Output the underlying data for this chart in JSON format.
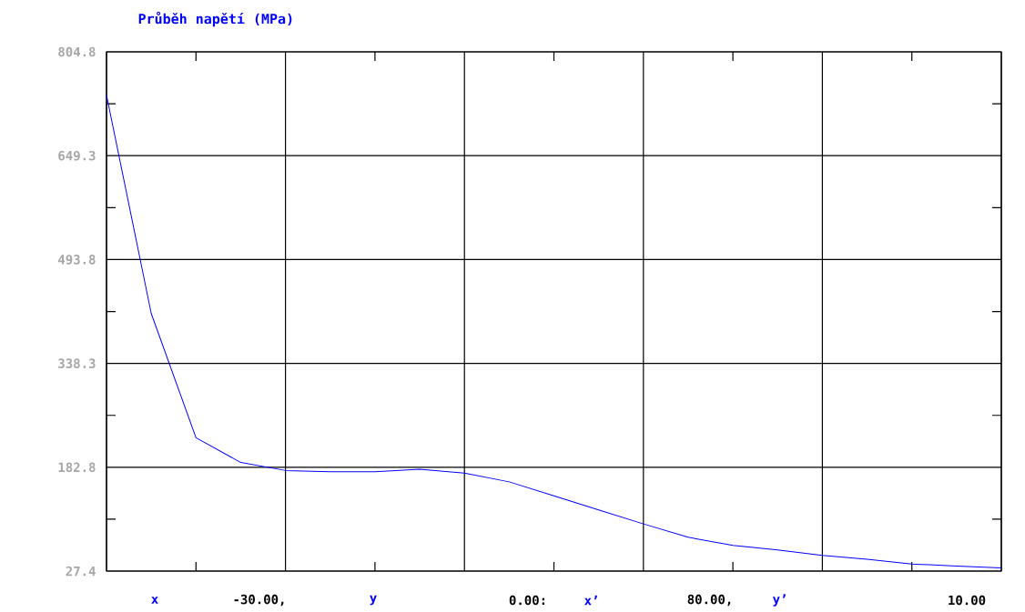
{
  "chart_data": {
    "type": "line",
    "title": "Průběh napětí (MPa)",
    "categories": [
      null,
      null,
      null,
      null,
      null,
      null,
      null,
      null,
      null,
      null,
      null,
      null,
      null,
      null,
      null,
      null,
      null,
      null,
      null,
      null,
      null
    ],
    "series": [
      {
        "color": "#0000ff",
        "values": [
          740,
          413,
          227,
          190,
          178,
          176,
          176,
          180,
          174,
          161,
          140,
          119,
          98,
          78,
          66,
          59,
          51,
          45,
          38,
          35,
          32
        ]
      }
    ],
    "ylim": [
      27.4,
      804.8
    ],
    "yticks": [
      27.4,
      182.8,
      338.3,
      493.8,
      649.3,
      804.8
    ],
    "grid": true,
    "tick_labels": "y",
    "annotations": [
      "x",
      "-30.00,",
      "y",
      "0.00:",
      "x’",
      "80.00,",
      "y’",
      "10.00"
    ]
  }
}
